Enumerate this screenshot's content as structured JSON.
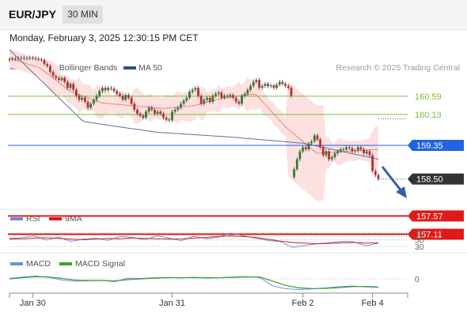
{
  "header": {
    "symbol": "EUR/JPY",
    "timeframe": "30 MIN",
    "datetime": "Monday, February 3, 2025 12:30:15 PM CET",
    "attribution": "Research © 2025 Trading Central"
  },
  "colors": {
    "bollinger_fill": "#fde0e0",
    "ma20": "#f08080",
    "ma50": "#5b6f9a",
    "resistance": "#7cbd3c",
    "pivot": "#1f64e0",
    "support": "#e01a1a",
    "candle_up": "#2e7d32",
    "candle_down": "#c62828",
    "price_tag": "#333333",
    "arrow": "#2f5fad",
    "rsi": "#6c8ee0",
    "rsi_ma": "#e01a1a",
    "macd": "#6c8ee0",
    "macd_signal": "#3aa02a"
  },
  "legend": {
    "ma20_label": "MA 20 + Bollinger Bands",
    "ma50_label": "MA 50",
    "rsi_label": "RSI",
    "rsi_ma_label": "9MA",
    "macd_label": "MACD",
    "macd_signal_label": "MACD Signal"
  },
  "chart_data": [
    {
      "type": "candlestick",
      "panel": "price",
      "y_range": [
        156.5,
        161.5
      ],
      "x_ticks": [
        {
          "label": "Jan 30",
          "index": 8
        },
        {
          "label": "Jan 31",
          "index": 56
        },
        {
          "label": "Feb 2",
          "index": 101
        },
        {
          "label": "Feb 4",
          "index": 125
        }
      ],
      "levels": [
        {
          "value": 160.59,
          "label": "160.59",
          "kind": "resistance"
        },
        {
          "value": 160.13,
          "label": "160.13",
          "kind": "resistance"
        },
        {
          "value": 159.35,
          "label": "159.35",
          "kind": "pivot"
        },
        {
          "value": 157.57,
          "label": "157.57",
          "kind": "support"
        },
        {
          "value": 157.11,
          "label": "157.11",
          "kind": "support"
        }
      ],
      "last_price": {
        "value": 158.5,
        "label": "158.50"
      },
      "close": [
        161.52,
        161.54,
        161.53,
        161.55,
        161.56,
        161.54,
        161.55,
        161.56,
        161.55,
        161.53,
        161.52,
        161.5,
        161.4,
        161.35,
        161.2,
        161.1,
        161.05,
        161.0,
        161.05,
        160.95,
        160.8,
        160.9,
        160.75,
        160.6,
        160.5,
        160.55,
        160.45,
        160.3,
        160.4,
        160.5,
        160.6,
        160.72,
        160.8,
        160.74,
        160.8,
        160.78,
        160.72,
        160.65,
        160.6,
        160.5,
        160.62,
        160.55,
        160.4,
        160.25,
        160.15,
        160.1,
        160.05,
        160.2,
        160.3,
        160.25,
        160.15,
        160.2,
        160.15,
        160.05,
        160.0,
        159.98,
        160.2,
        160.25,
        160.3,
        160.4,
        160.48,
        160.55,
        160.7,
        160.75,
        160.8,
        160.6,
        160.4,
        160.5,
        160.55,
        160.45,
        160.6,
        160.65,
        160.68,
        160.55,
        160.6,
        160.58,
        160.62,
        160.55,
        160.45,
        160.4,
        160.6,
        160.65,
        160.75,
        160.85,
        160.95,
        161.0,
        160.8,
        160.85,
        160.9,
        160.84,
        160.86,
        160.8,
        160.88,
        160.95,
        160.9,
        160.85,
        160.8,
        160.6,
        158.75,
        159.0,
        159.2,
        159.3,
        159.25,
        159.4,
        159.45,
        159.6,
        159.5,
        159.3,
        159.1,
        159.2,
        159.0,
        159.05,
        159.15,
        159.2,
        159.25,
        159.25,
        159.3,
        159.28,
        159.2,
        159.22,
        159.3,
        159.25,
        159.15,
        159.2,
        159.1,
        158.7,
        158.6,
        158.5
      ],
      "ma50": [
        161.76,
        159.95,
        159.68,
        159.56,
        159.4,
        159.0
      ],
      "ma20_sample": [
        161.55,
        161.3,
        160.7,
        160.42,
        160.35,
        160.28,
        160.35,
        160.55,
        160.65,
        159.8,
        159.15,
        159.2,
        159.25
      ]
    },
    {
      "type": "line",
      "panel": "rsi",
      "levels": [
        70,
        50,
        30
      ],
      "series": [
        {
          "name": "RSI",
          "sample": [
            54,
            56,
            62,
            49,
            58,
            45,
            52,
            55,
            48,
            60,
            57,
            50,
            62,
            55,
            47,
            61,
            53,
            58,
            70,
            62,
            55,
            48,
            45,
            27,
            33,
            38,
            41,
            45,
            44,
            32,
            40
          ]
        },
        {
          "name": "9MA",
          "sample": [
            52,
            53,
            55,
            56,
            54,
            52,
            50,
            52,
            54,
            53,
            55,
            54,
            53,
            52,
            53,
            55,
            57,
            60,
            61,
            60,
            57,
            52,
            46,
            42,
            40,
            38,
            39,
            41,
            42,
            40,
            41
          ]
        }
      ]
    },
    {
      "type": "line",
      "panel": "macd",
      "levels": [
        0
      ],
      "series": [
        {
          "name": "MACD",
          "sample": [
            0.02,
            0.08,
            0.12,
            0.06,
            -0.05,
            -0.1,
            -0.08,
            -0.06,
            -0.12,
            0.03,
            0.02,
            0.05,
            0.06,
            0.04,
            0.07,
            0.03,
            0.05,
            0.08,
            0.1,
            0.06,
            -0.3,
            -0.42,
            -0.45,
            -0.42,
            -0.38,
            -0.33,
            -0.3,
            -0.34,
            -0.36
          ]
        },
        {
          "name": "MACD Signal",
          "sample": [
            0.0,
            0.05,
            0.09,
            0.08,
            0.02,
            -0.05,
            -0.07,
            -0.07,
            -0.09,
            -0.03,
            0.0,
            0.03,
            0.05,
            0.05,
            0.05,
            0.05,
            0.05,
            0.06,
            0.08,
            0.08,
            -0.1,
            -0.28,
            -0.38,
            -0.41,
            -0.4,
            -0.37,
            -0.33,
            -0.32,
            -0.34
          ]
        }
      ]
    }
  ]
}
